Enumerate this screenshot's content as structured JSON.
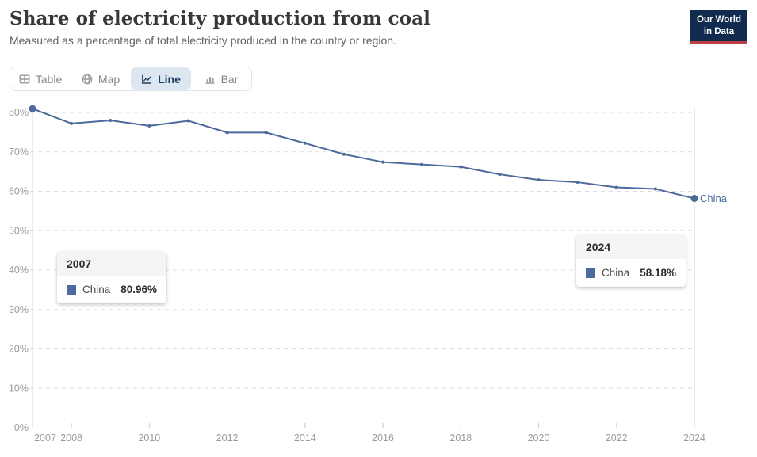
{
  "header": {
    "title": "Share of electricity production from coal",
    "subtitle": "Measured as a percentage of total electricity produced in the country or region.",
    "logo": {
      "line1": "Our World",
      "line2": "in Data"
    }
  },
  "tabs": [
    {
      "label": "Table",
      "icon": "table-icon",
      "selected": false
    },
    {
      "label": "Map",
      "icon": "globe-icon",
      "selected": false
    },
    {
      "label": "Line",
      "icon": "line-chart-icon",
      "selected": true
    },
    {
      "label": "Bar",
      "icon": "bar-chart-icon",
      "selected": false
    }
  ],
  "chart_data": {
    "type": "line",
    "title": "Share of electricity production from coal",
    "xlabel": "",
    "ylabel": "",
    "x": [
      2007,
      2008,
      2009,
      2010,
      2011,
      2012,
      2013,
      2014,
      2015,
      2016,
      2017,
      2018,
      2019,
      2020,
      2021,
      2022,
      2023,
      2024
    ],
    "series": [
      {
        "name": "China",
        "color": "#4C6A9C",
        "values": [
          80.96,
          77.2,
          78.0,
          76.6,
          77.9,
          74.9,
          74.9,
          72.2,
          69.4,
          67.4,
          66.8,
          66.2,
          64.3,
          62.9,
          62.3,
          61.0,
          60.6,
          58.18
        ]
      }
    ],
    "highlighted_points": [
      {
        "year": 2007,
        "value": 80.96
      },
      {
        "year": 2024,
        "value": 58.18
      }
    ],
    "end_label": "China",
    "xlim": [
      2007,
      2024
    ],
    "ylim": [
      0,
      80
    ],
    "xticks": [
      2007,
      2008,
      2010,
      2012,
      2014,
      2016,
      2018,
      2020,
      2022,
      2024
    ],
    "yticks": [
      0,
      10,
      20,
      30,
      40,
      50,
      60,
      70,
      80
    ],
    "ytick_labels": [
      "0%",
      "10%",
      "20%",
      "30%",
      "40%",
      "50%",
      "60%",
      "70%",
      "80%"
    ],
    "grid": "horizontal-dashed",
    "legend_position": "end-of-line",
    "colors": {
      "line": "#4C6A9C",
      "gridline": "#dcdcdc",
      "axis": "#cccccc",
      "tick_label": "#9b9b9b",
      "hover_line": "#e3e3e3"
    }
  },
  "tooltips": [
    {
      "year": "2007",
      "entity": "China",
      "value": "80.96%"
    },
    {
      "year": "2024",
      "entity": "China",
      "value": "58.18%"
    }
  ]
}
